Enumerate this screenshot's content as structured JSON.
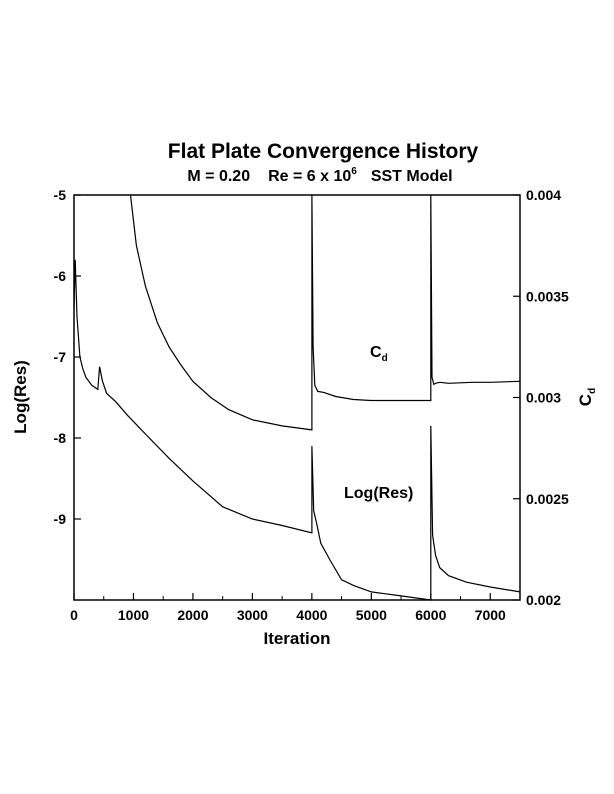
{
  "chart_data": {
    "type": "line",
    "title": "Flat Plate Convergence History",
    "subtitle": {
      "mach": "M = 0.20",
      "re_prefix": "Re = 6 x 10",
      "re_exponent": "6",
      "model": "SST Model"
    },
    "xlabel": "Iteration",
    "ylabel_left": "Log(Res)",
    "ylabel_right": {
      "base": "C",
      "subscript": "d"
    },
    "xlim": [
      0,
      7500
    ],
    "ylim_left": [
      -10,
      -5
    ],
    "ylim_right": [
      0.002,
      0.004
    ],
    "x_ticks": [
      "0",
      "1000",
      "2000",
      "3000",
      "4000",
      "5000",
      "6000",
      "7000"
    ],
    "y_left_ticks": [
      "-5",
      "-6",
      "-7",
      "-8",
      "-9"
    ],
    "y_right_ticks": [
      "0.004",
      "0.0035",
      "0.003",
      "0.0025",
      "0.002"
    ],
    "annotations": {
      "cd": {
        "base": "C",
        "subscript": "d"
      },
      "res": "Log(Res)"
    },
    "series": [
      {
        "axis": "left",
        "x": [
          0,
          20,
          50,
          100,
          150,
          200,
          300,
          400,
          430,
          480,
          550,
          700,
          900,
          1200,
          1600,
          2000,
          2500,
          3000,
          3500,
          4000,
          4000,
          4030,
          4080,
          4150,
          4300,
          4500,
          4700,
          5000,
          5500,
          6000,
          6000,
          6030,
          6080,
          6150,
          6300,
          6600,
          7000,
          7500
        ],
        "y": [
          -6.4,
          -5.8,
          -6.5,
          -7.0,
          -7.15,
          -7.25,
          -7.35,
          -7.4,
          -7.12,
          -7.3,
          -7.45,
          -7.55,
          -7.72,
          -7.95,
          -8.25,
          -8.53,
          -8.85,
          -9.0,
          -9.08,
          -9.17,
          -8.1,
          -8.9,
          -9.05,
          -9.3,
          -9.5,
          -9.75,
          -9.82,
          -9.9,
          -9.95,
          -10.0,
          -7.85,
          -9.2,
          -9.45,
          -9.6,
          -9.7,
          -9.78,
          -9.84,
          -9.9
        ]
      },
      {
        "axis": "right",
        "x": [
          950,
          1050,
          1200,
          1400,
          1600,
          1800,
          2000,
          2300,
          2600,
          3000,
          3500,
          4000,
          4000,
          4020,
          4050,
          4100,
          4200,
          4400,
          4700,
          5000,
          5500,
          6000,
          6000,
          6020,
          6050,
          6080,
          6150,
          6300,
          6700,
          7000,
          7500
        ],
        "y": [
          0.004,
          0.00375,
          0.00355,
          0.00337,
          0.00325,
          0.00316,
          0.00308,
          0.003,
          0.00294,
          0.00289,
          0.00286,
          0.00284,
          0.004,
          0.00325,
          0.00306,
          0.00303,
          0.003025,
          0.003005,
          0.00299,
          0.002985,
          0.002985,
          0.002985,
          0.004,
          0.0031,
          0.003065,
          0.00307,
          0.003075,
          0.00307,
          0.003075,
          0.003075,
          0.00308
        ]
      }
    ],
    "grid": false,
    "legend": "none"
  }
}
